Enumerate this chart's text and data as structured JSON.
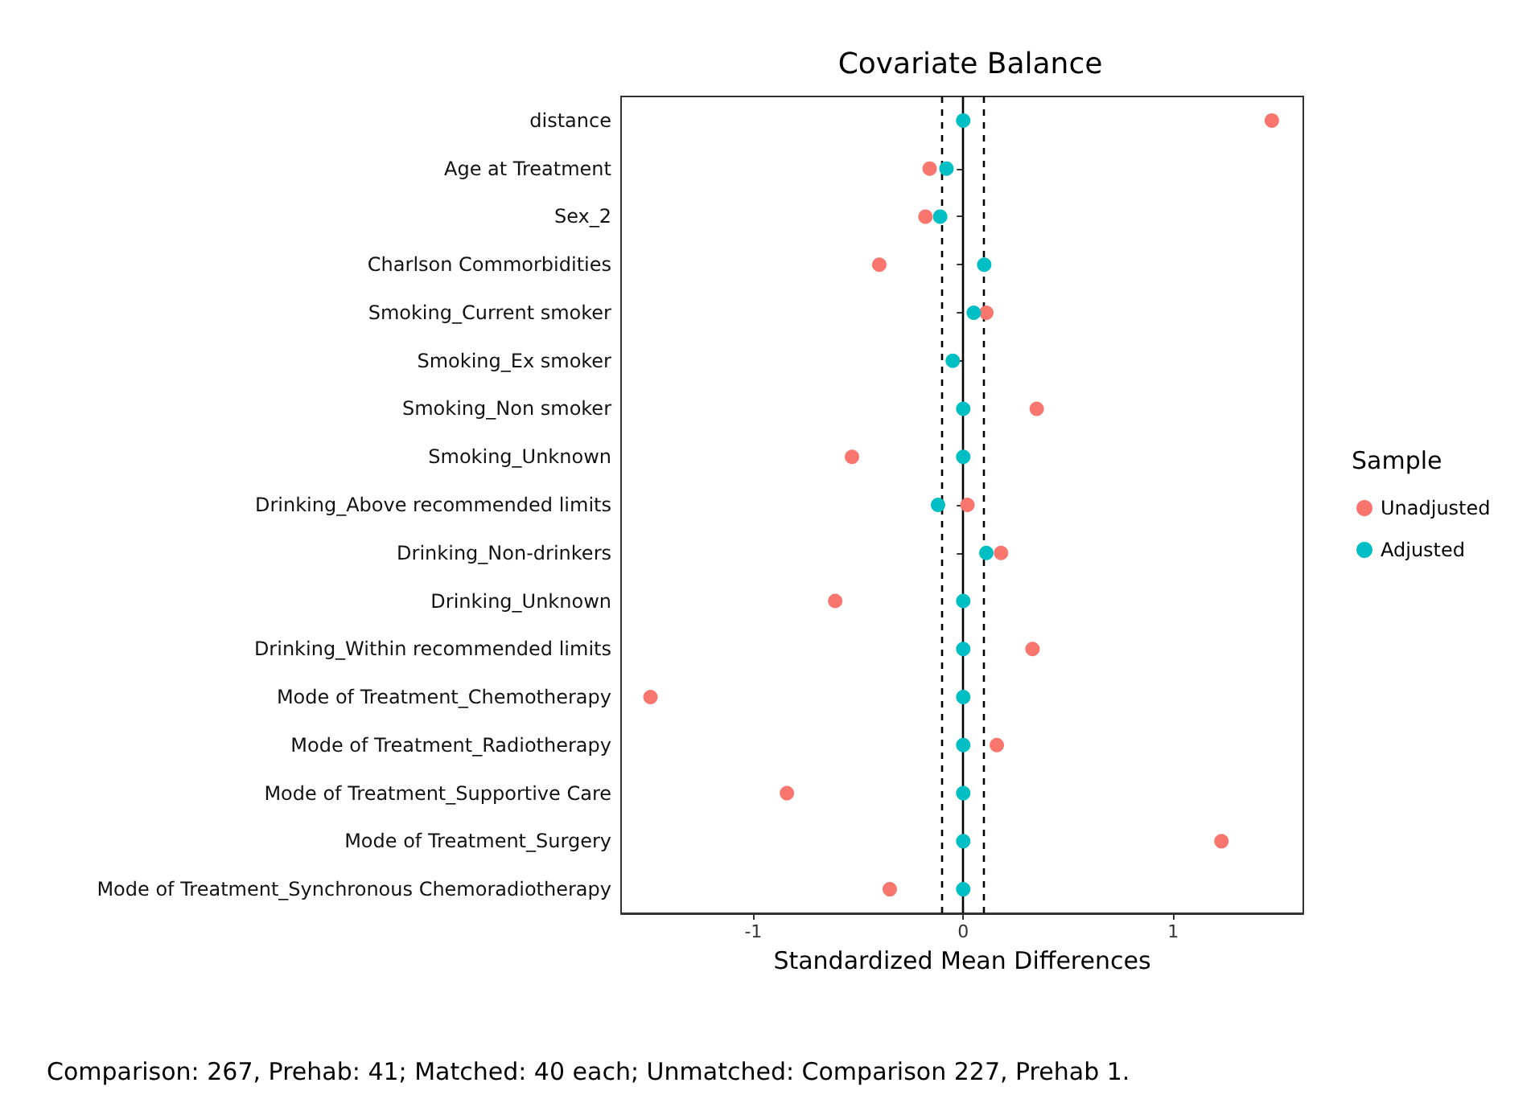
{
  "chart_data": {
    "type": "scatter",
    "title": "Covariate Balance",
    "xlabel": "Standardized Mean Differences",
    "legend_title": "Sample",
    "annotations": [
      "Comparison: 267, Prehab: 41; Matched: 40 each; Unmatched: Comparison 227, Prehab 1."
    ],
    "orientation": "horizontal",
    "categories": [
      "distance",
      "Age at Treatment",
      "Sex_2",
      "Charlson Commorbidities",
      "Smoking_Current smoker",
      "Smoking_Ex smoker",
      "Smoking_Non smoker",
      "Smoking_Unknown",
      "Drinking_Above recommended limits",
      "Drinking_Non-drinkers",
      "Drinking_Unknown",
      "Drinking_Within recommended limits",
      "Mode of Treatment_Chemotherapy",
      "Mode of Treatment_Radiotherapy",
      "Mode of Treatment_Supportive Care",
      "Mode of Treatment_Surgery",
      "Mode of Treatment_Synchronous Chemoradiotherapy"
    ],
    "series": [
      {
        "name": "Unadjusted",
        "color": "#f8766d",
        "values": [
          1.47,
          -0.16,
          -0.18,
          -0.4,
          0.11,
          null,
          0.35,
          -0.53,
          0.02,
          0.18,
          -0.61,
          0.33,
          -1.49,
          0.16,
          -0.84,
          1.23,
          -0.35
        ]
      },
      {
        "name": "Adjusted",
        "color": "#00bfc4",
        "values": [
          0,
          -0.08,
          -0.11,
          0.1,
          0.05,
          -0.05,
          0,
          0,
          -0.12,
          0.11,
          0,
          0,
          0,
          0,
          0,
          0,
          0
        ]
      }
    ],
    "xlim": [
      -1.63,
      1.62
    ],
    "xticks": [
      -1,
      0,
      1
    ],
    "ref_lines": [
      {
        "axis": "x",
        "value": 0,
        "line_style": "solid"
      },
      {
        "axis": "x",
        "value": -0.1,
        "line_style": "dashed"
      },
      {
        "axis": "x",
        "value": 0.1,
        "line_style": "dashed"
      }
    ],
    "grid": false,
    "legend": "right",
    "marker": "circle"
  }
}
